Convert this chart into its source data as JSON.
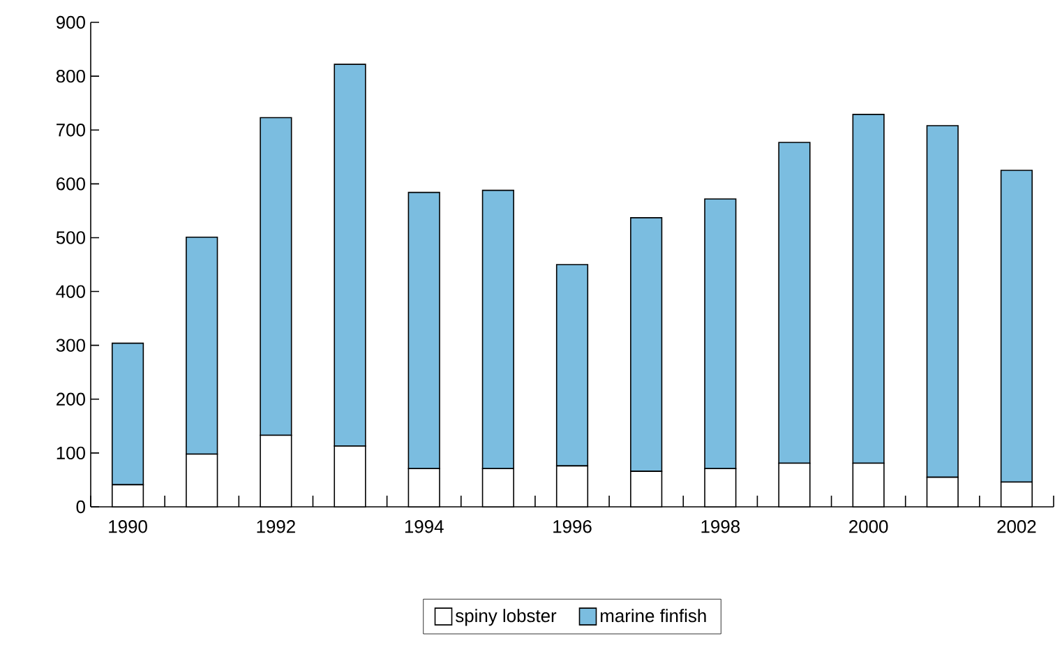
{
  "chart_data": {
    "type": "bar",
    "stacked": true,
    "categories": [
      "1990",
      null,
      "1992",
      null,
      "1994",
      null,
      "1996",
      null,
      "1998",
      null,
      "2000",
      null,
      "2002"
    ],
    "series": [
      {
        "name": "spiny lobster",
        "color": "#ffffff",
        "values": [
          41,
          98,
          133,
          113,
          71,
          71,
          76,
          66,
          71,
          81,
          81,
          55,
          46
        ]
      },
      {
        "name": "marine finfish",
        "color": "#7bbde0",
        "values": [
          263,
          403,
          590,
          709,
          513,
          517,
          374,
          471,
          501,
          596,
          648,
          653,
          579
        ]
      }
    ],
    "ylim": [
      0,
      900
    ],
    "yticks": [
      0,
      100,
      200,
      300,
      400,
      500,
      600,
      700,
      800,
      900
    ],
    "grid": false,
    "legend": "bottom"
  }
}
